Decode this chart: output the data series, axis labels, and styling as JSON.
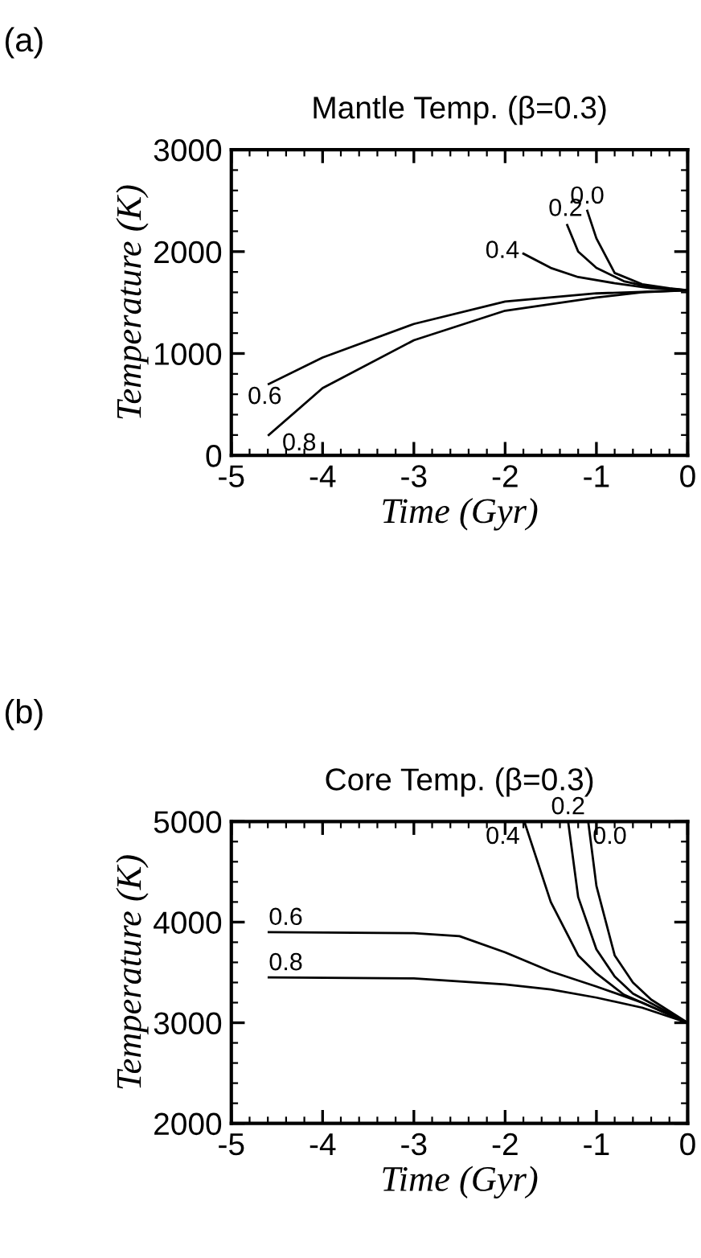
{
  "chart_data": [
    {
      "type": "line",
      "title": "Mantle Temp. (β=0.3)",
      "xlabel": "Time (Gyr)",
      "ylabel": "Temperature (K)",
      "xlim": [
        -5,
        0
      ],
      "xticks": [
        -5,
        -4,
        -3,
        -2,
        -1,
        0
      ],
      "ylim": [
        0,
        3000
      ],
      "yticks": [
        0,
        1000,
        2000,
        3000
      ],
      "grid": false,
      "legend": false,
      "line_style": "solid",
      "marker": "none",
      "series": [
        {
          "color": "#000000",
          "x": [
            -1.1,
            -1.0,
            -0.8,
            -0.5,
            -0.2,
            0
          ],
          "values": [
            2400,
            2130,
            1790,
            1680,
            1640,
            1620
          ]
        },
        {
          "color": "#000000",
          "x": [
            -1.32,
            -1.2,
            -1.0,
            -0.7,
            -0.4,
            0
          ],
          "values": [
            2260,
            2000,
            1840,
            1710,
            1650,
            1620
          ]
        },
        {
          "color": "#000000",
          "x": [
            -1.8,
            -1.5,
            -1.2,
            -0.8,
            -0.4,
            0
          ],
          "values": [
            1980,
            1840,
            1750,
            1690,
            1640,
            1620
          ]
        },
        {
          "color": "#000000",
          "x": [
            -4.59,
            -4,
            -3,
            -2,
            -1,
            0
          ],
          "values": [
            700,
            960,
            1290,
            1510,
            1590,
            1620
          ]
        },
        {
          "color": "#000000",
          "x": [
            -4.59,
            -4,
            -3,
            -2,
            -1,
            -0.5,
            0
          ],
          "values": [
            200,
            660,
            1130,
            1420,
            1550,
            1600,
            1620
          ]
        }
      ],
      "annotations": [
        "(a)",
        {
          "text": "0.0",
          "x": -1.1,
          "y": 2400
        },
        {
          "text": "0.2",
          "x": -1.32,
          "y": 2260
        },
        {
          "text": "0.4",
          "x": -1.8,
          "y": 1980
        },
        {
          "text": "0.6",
          "x": -4.59,
          "y": 700
        },
        {
          "text": "0.8",
          "x": -4.59,
          "y": 200
        }
      ]
    },
    {
      "type": "line",
      "title": "Core Temp. (β=0.3)",
      "xlabel": "Time (Gyr)",
      "ylabel": "Temperature (K)",
      "xlim": [
        -5,
        0
      ],
      "xticks": [
        -5,
        -4,
        -3,
        -2,
        -1,
        0
      ],
      "ylim": [
        2000,
        5000
      ],
      "yticks": [
        2000,
        3000,
        4000,
        5000
      ],
      "grid": false,
      "legend": false,
      "line_style": "solid",
      "marker": "none",
      "series": [
        {
          "color": "#000000",
          "x": [
            -1.09,
            -1.0,
            -0.8,
            -0.6,
            -0.4,
            0
          ],
          "values": [
            5000,
            4360,
            3670,
            3400,
            3230,
            3000
          ]
        },
        {
          "color": "#000000",
          "x": [
            -1.31,
            -1.2,
            -1.0,
            -0.8,
            -0.6,
            0
          ],
          "values": [
            5000,
            4250,
            3730,
            3460,
            3290,
            3000
          ]
        },
        {
          "color": "#000000",
          "x": [
            -1.79,
            -1.5,
            -1.2,
            -1.0,
            -0.7,
            0
          ],
          "values": [
            5000,
            4200,
            3670,
            3490,
            3280,
            3000
          ]
        },
        {
          "color": "#000000",
          "x": [
            -4.59,
            -3,
            -2.5,
            -2,
            -1.5,
            -1,
            -0.5,
            0
          ],
          "values": [
            3900,
            3890,
            3860,
            3700,
            3510,
            3360,
            3200,
            3000
          ]
        },
        {
          "color": "#000000",
          "x": [
            -4.59,
            -3,
            -2,
            -1.5,
            -1,
            -0.5,
            0
          ],
          "values": [
            3450,
            3440,
            3380,
            3330,
            3250,
            3150,
            3000
          ]
        }
      ],
      "annotations": [
        "(b)",
        {
          "text": "0.0",
          "x": -1.09,
          "y": 5000
        },
        {
          "text": "0.2",
          "x": -1.31,
          "y": 5000
        },
        {
          "text": "0.4",
          "x": -1.79,
          "y": 5000
        },
        {
          "text": "0.6",
          "x": -4.59,
          "y": 3900
        },
        {
          "text": "0.8",
          "x": -4.59,
          "y": 3450
        }
      ]
    }
  ]
}
